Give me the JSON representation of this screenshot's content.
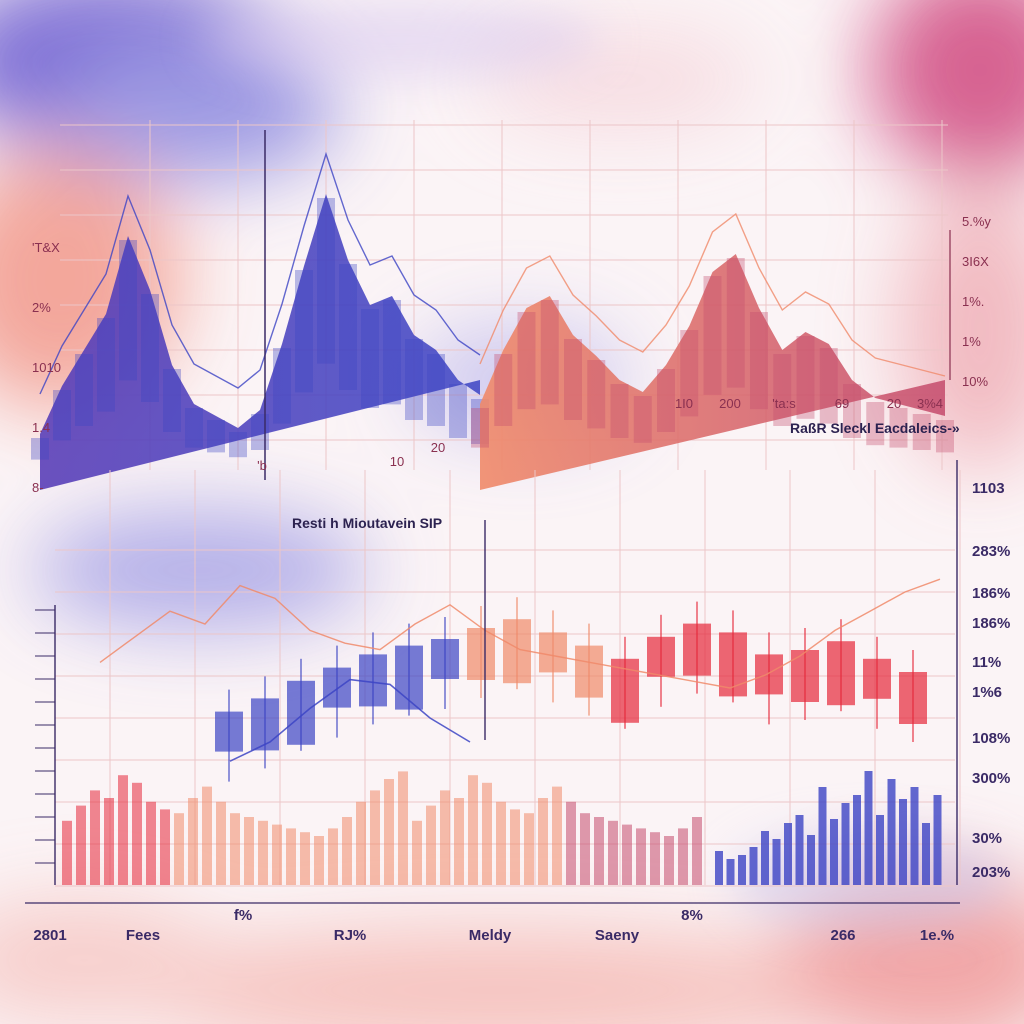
{
  "colors": {
    "blue": "#3c44c4",
    "indigo": "#5a3fb8",
    "red": "#e6283a",
    "salmon": "#f08a6a",
    "rose": "#c44a6c",
    "grid": "#ecc6c8",
    "background": "#fbf4f6"
  },
  "chart_data": [
    {
      "type": "area",
      "title": "RaßR Sleckl Eacdaleics-»",
      "y_tick_labels_left": [
        "'T&X",
        "2%",
        "1010",
        "1.4",
        "8-"
      ],
      "y_tick_labels_right": [
        "5.%y",
        "3I6X",
        "1%.",
        "1%",
        "10%"
      ],
      "x_tick_labels": [
        "'b",
        "10",
        "20",
        "1I0",
        "200",
        "'ta:s",
        "69",
        "20",
        "3%4"
      ],
      "grid": true,
      "series": [
        {
          "color": "#3c44c4",
          "values": [
            12,
            28,
            40,
            52,
            78,
            60,
            35,
            22,
            18,
            14,
            20,
            42,
            68,
            92,
            70,
            55,
            58,
            45,
            40,
            30,
            25
          ]
        },
        {
          "color": "#e6283a",
          "values": [
            22,
            40,
            54,
            58,
            45,
            38,
            30,
            26,
            35,
            48,
            66,
            72,
            54,
            40,
            46,
            42,
            30,
            24,
            22,
            20,
            18
          ]
        }
      ]
    },
    {
      "type": "bar",
      "title": "Resti h Mioutavein SIP",
      "y_tick_labels_right": [
        "1103",
        "283%",
        "186%",
        "186%",
        "11%",
        "1%6",
        "108%",
        "300%",
        "30%",
        "203%"
      ],
      "x_tick_labels": [
        "2801",
        "Fees",
        "f%",
        "RJ%",
        "Meldy",
        "Saeny",
        "8%",
        "266",
        "1e.%"
      ],
      "grid": true,
      "series": [
        {
          "color": "#f08a6a",
          "values": [
            18,
            26,
            34,
            30,
            42,
            38,
            28,
            24,
            22,
            30,
            36,
            28,
            22,
            20,
            18,
            16,
            14,
            12,
            10,
            14,
            20,
            28,
            34,
            40,
            44
          ]
        },
        {
          "color": "#e6283a",
          "values": [
            22,
            28,
            36,
            42,
            48,
            52,
            55,
            60,
            64,
            58,
            52,
            46,
            56,
            62,
            58,
            48,
            50,
            54,
            46,
            40
          ]
        },
        {
          "color": "#3c44c4",
          "values": [
            12,
            8,
            10,
            14,
            22,
            18,
            26,
            30,
            20,
            44,
            28,
            36,
            40,
            52,
            30,
            48,
            38,
            44,
            26,
            40
          ]
        }
      ]
    }
  ]
}
